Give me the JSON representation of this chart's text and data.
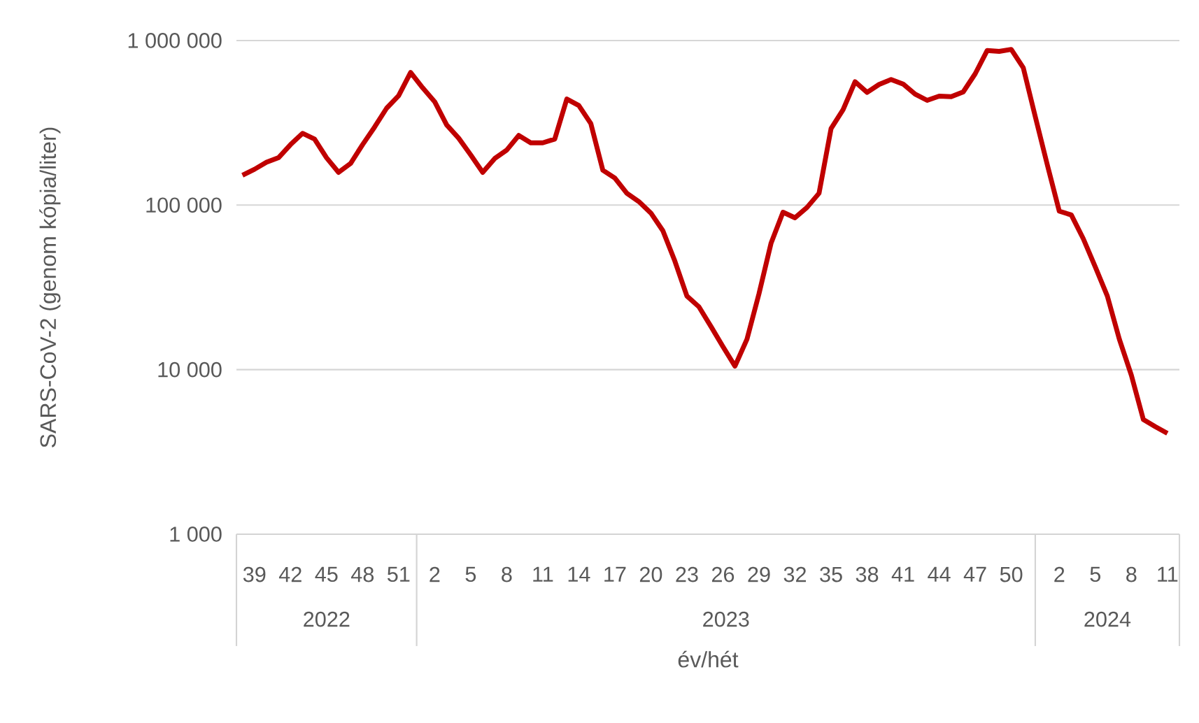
{
  "chart_data": {
    "type": "line",
    "xlabel": "év/hét",
    "ylabel": "SARS-CoV-2 (genom kópia/liter)",
    "categories": [
      null,
      "39",
      null,
      null,
      "42",
      null,
      null,
      "45",
      null,
      null,
      "48",
      null,
      null,
      "51",
      null,
      null,
      "2",
      null,
      null,
      "5",
      null,
      null,
      "8",
      null,
      null,
      "11",
      null,
      null,
      "14",
      null,
      null,
      "17",
      null,
      null,
      "20",
      null,
      null,
      "23",
      null,
      null,
      "26",
      null,
      null,
      "29",
      null,
      null,
      "32",
      null,
      null,
      "35",
      null,
      null,
      "38",
      null,
      null,
      "41",
      null,
      null,
      "44",
      null,
      null,
      "47",
      null,
      null,
      "50",
      null,
      null,
      null,
      "2",
      null,
      null,
      "5",
      null,
      null,
      "8",
      null,
      null,
      "11"
    ],
    "series": [
      {
        "color": "#c00000",
        "values": [
          152000,
          165000,
          182000,
          194000,
          233000,
          273000,
          252000,
          194000,
          158000,
          179000,
          233000,
          298000,
          388000,
          462000,
          640000,
          516000,
          425000,
          307000,
          255000,
          202000,
          158000,
          192000,
          216000,
          265000,
          239000,
          239000,
          252000,
          441000,
          403000,
          313000,
          163000,
          146000,
          118000,
          105000,
          89500,
          69800,
          45600,
          28000,
          24100,
          18300,
          13800,
          10500,
          15300,
          28900,
          58500,
          90500,
          83700,
          96800,
          118000,
          292000,
          380000,
          562000,
          484000,
          541000,
          580000,
          544000,
          472000,
          433000,
          459000,
          456000,
          487000,
          628000,
          870000,
          859000,
          883000,
          684000,
          345000,
          176000,
          91800,
          87100,
          62400,
          42000,
          28000,
          15300,
          9250,
          4970,
          4500,
          4100
        ]
      }
    ],
    "log": "y",
    "ylim": [
      1000,
      1000000
    ],
    "yticks": [
      {
        "value": 1000,
        "label": "1 000"
      },
      {
        "value": 10000,
        "label": "10 000"
      },
      {
        "value": 100000,
        "label": "100 000"
      },
      {
        "value": 1000000,
        "label": "1 000 000"
      }
    ],
    "grid": "y",
    "annotations": [
      "2022",
      "2023",
      "2024"
    ]
  }
}
